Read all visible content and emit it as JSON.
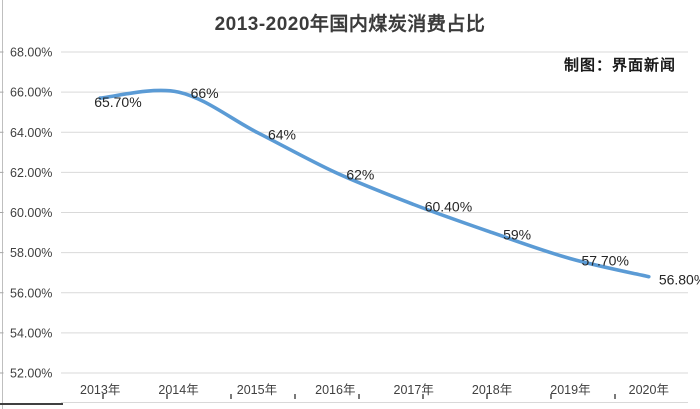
{
  "chart": {
    "title": "2013-2020年国内煤炭消费占比",
    "credit": "制图：界面新闻"
  },
  "chart_data": {
    "type": "line",
    "title": "2013-2020年国内煤炭消费占比",
    "annotation": "制图：界面新闻",
    "categories": [
      "2013年",
      "2014年",
      "2015年",
      "2016年",
      "2017年",
      "2018年",
      "2019年",
      "2020年"
    ],
    "series": [
      {
        "name": "国内煤炭消费占比",
        "values": [
          65.7,
          66,
          64,
          62,
          60.4,
          59,
          57.7,
          56.8
        ],
        "point_labels": [
          "65.70%",
          "66%",
          "64%",
          "62%",
          "60.40%",
          "59%",
          "57.70%",
          "56.80%"
        ]
      }
    ],
    "xlabel": "",
    "ylabel": "",
    "ylim": [
      52,
      68
    ],
    "ytick_step": 2,
    "ytick_labels": [
      "68.00%",
      "66.00%",
      "64.00%",
      "62.00%",
      "60.00%",
      "58.00%",
      "56.00%",
      "54.00%",
      "52.00%"
    ],
    "grid": "horizontal-only",
    "legend": "none",
    "line_smoothed": true,
    "colors": {
      "line": "#5b9bd5",
      "gridline": "#d9d9d9",
      "axis_text": "#404040",
      "data_label_text": "#262626",
      "title_text": "#3b3b3b",
      "left_border": "#bfbfbf",
      "bottom_artifact": "#595959"
    }
  }
}
